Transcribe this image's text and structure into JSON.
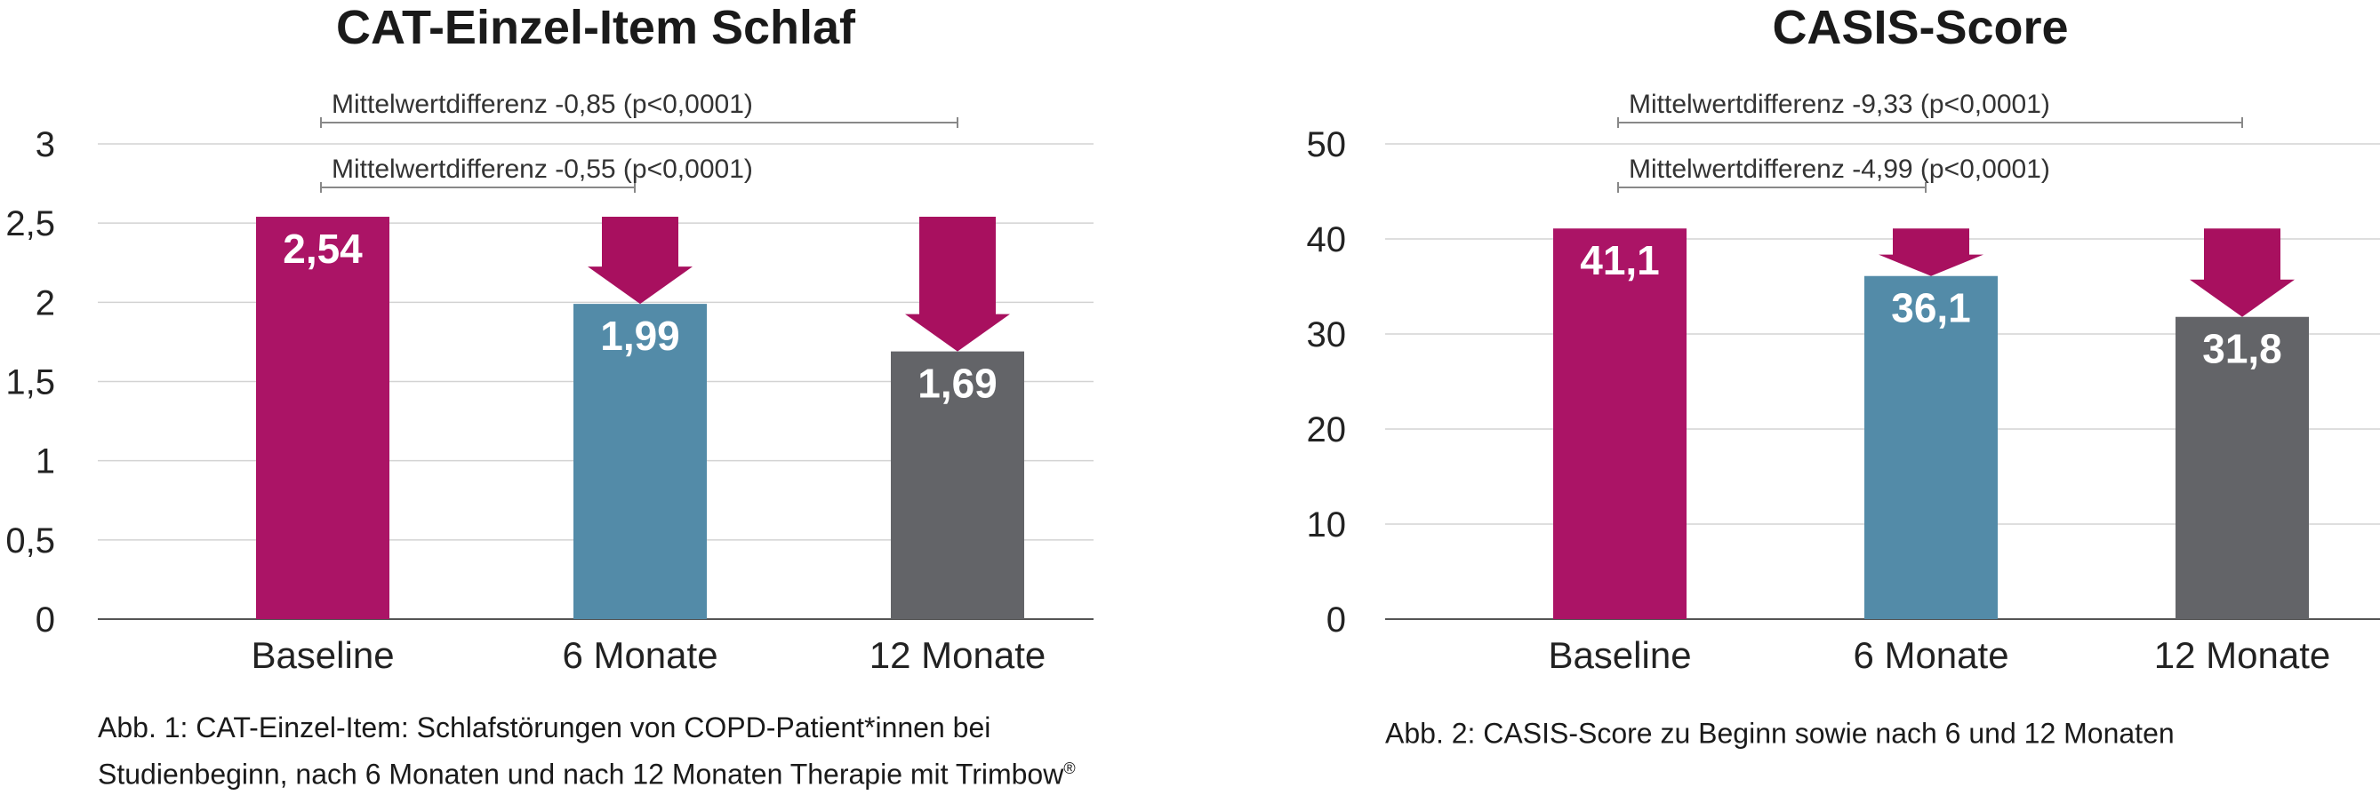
{
  "chart_data": [
    {
      "type": "bar",
      "title": "CAT-Einzel-Item Schlaf",
      "categories": [
        "Baseline",
        "6 Monate",
        "12 Monate"
      ],
      "values": [
        2.54,
        1.99,
        1.69
      ],
      "value_labels": [
        "2,54",
        "1,99",
        "1,69"
      ],
      "yticks": [
        "0",
        "0,5",
        "1",
        "1,5",
        "2",
        "2,5",
        "3"
      ],
      "ylim": [
        0,
        3
      ],
      "grid": true,
      "colors": [
        "#ab1466",
        "#538ba8",
        "#636468"
      ],
      "arrow_color": "#a8105f",
      "annotations": [
        {
          "text": "Mittelwertdifferenz -0,85 (p<0,0001)",
          "from": 0,
          "to": 2
        },
        {
          "text": "Mittelwertdifferenz -0,55 (p<0,0001)",
          "from": 0,
          "to": 1
        }
      ],
      "caption": "Abb. 1: CAT-Einzel-Item: Schlafstörungen von COPD-Patient*innen bei Studienbeginn, nach 6 Monaten und nach 12 Monaten Therapie mit Trimbow",
      "caption_mark": "®"
    },
    {
      "type": "bar",
      "title": "CASIS-Score",
      "categories": [
        "Baseline",
        "6 Monate",
        "12 Monate"
      ],
      "values": [
        41.1,
        36.1,
        31.8
      ],
      "value_labels": [
        "41,1",
        "36,1",
        "31,8"
      ],
      "yticks": [
        "0",
        "10",
        "20",
        "30",
        "40",
        "50"
      ],
      "ylim": [
        0,
        50
      ],
      "grid": true,
      "colors": [
        "#ab1466",
        "#538ba8",
        "#636468"
      ],
      "arrow_color": "#a8105f",
      "annotations": [
        {
          "text": "Mittelwertdifferenz -9,33 (p<0,0001)",
          "from": 0,
          "to": 2
        },
        {
          "text": "Mittelwertdifferenz -4,99 (p<0,0001)",
          "from": 0,
          "to": 1
        }
      ],
      "caption": "Abb. 2: CASIS-Score zu Beginn sowie nach 6 und 12 Monaten",
      "caption_mark": ""
    }
  ]
}
